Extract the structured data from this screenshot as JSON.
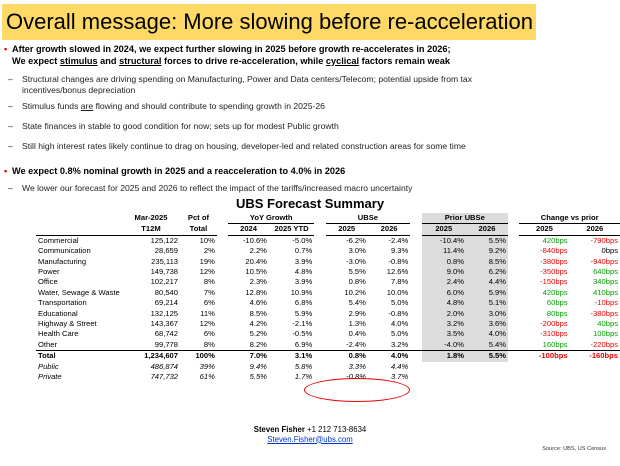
{
  "title": "Overall message: More slowing before re-acceleration",
  "bullet1": {
    "line1": "After growth slowed in 2024, we expect further slowing in 2025 before growth re-accelerates in 2026;",
    "line2a": "We expect ",
    "line2b": "stimulus",
    "line2c": " and ",
    "line2d": "structural",
    "line2e": " forces to drive re-acceleration, while ",
    "line2f": "cyclical",
    "line2g": " factors remain weak"
  },
  "subs1": [
    "Structural changes are driving spending on Manufacturing, Power and Data centers/Telecom; potential upside from tax",
    "incentives/bonus depreciation",
    "Stimulus funds ",
    "are",
    " flowing and should contribute to spending growth in 2025-26",
    "State finances in stable to good condition for now; sets up for modest Public growth",
    "Still high interest rates likely continue to drag on housing, developer-led and related construction areas for some time"
  ],
  "bullet2": "We expect 0.8% nominal growth in 2025 and a reacceleration to 4.0% in 2026",
  "sub2": "We lower our forecast for 2025 and 2026 to reflect the impact of the tariffs/increased macro uncertainty",
  "table_title": "UBS Forecast Summary",
  "headers": {
    "mar": "Mar-2025",
    "t12m": "T12M",
    "pct": "Pct of",
    "total": "Total",
    "yoy": "YoY Growth",
    "y2024": "2024",
    "ytd": "2025 YTD",
    "ubse": "UBSe",
    "u2025": "2025",
    "u2026": "2026",
    "prior": "Prior UBSe",
    "p2025": "2025",
    "p2026": "2026",
    "chg": "Change vs prior",
    "c2025": "2025",
    "c2026": "2026"
  },
  "rows": [
    {
      "name": "Commercial",
      "t12m": "125,122",
      "pct": "10%",
      "y2024": "-10.6%",
      "ytd": "-5.0%",
      "u25": "-6.2%",
      "u26": "-2.4%",
      "p25": "-10.4%",
      "p26": "5.5%",
      "c25": "420bps",
      "c26": "-790bps",
      "c25c": "g",
      "c26c": "r"
    },
    {
      "name": "Communication",
      "t12m": "28,659",
      "pct": "2%",
      "y2024": "2.2%",
      "ytd": "0.7%",
      "u25": "3.0%",
      "u26": "9.3%",
      "p25": "11.4%",
      "p26": "9.2%",
      "c25": "-840bps",
      "c26": "0bps",
      "c25c": "r",
      "c26c": ""
    },
    {
      "name": "Manufacturing",
      "t12m": "235,113",
      "pct": "19%",
      "y2024": "20.4%",
      "ytd": "3.9%",
      "u25": "-3.0%",
      "u26": "-0.8%",
      "p25": "0.8%",
      "p26": "8.5%",
      "c25": "-380bps",
      "c26": "-940bps",
      "c25c": "r",
      "c26c": "r"
    },
    {
      "name": "Power",
      "t12m": "149,738",
      "pct": "12%",
      "y2024": "10.5%",
      "ytd": "4.8%",
      "u25": "5.5%",
      "u26": "12.6%",
      "p25": "9.0%",
      "p26": "6.2%",
      "c25": "-350bps",
      "c26": "640bps",
      "c25c": "r",
      "c26c": "g"
    },
    {
      "name": "Office",
      "t12m": "102,217",
      "pct": "8%",
      "y2024": "2.3%",
      "ytd": "3.9%",
      "u25": "0.8%",
      "u26": "7.8%",
      "p25": "2.4%",
      "p26": "4.4%",
      "c25": "-150bps",
      "c26": "340bps",
      "c25c": "r",
      "c26c": "g"
    },
    {
      "name": "Water, Sewage & Waste",
      "t12m": "80,540",
      "pct": "7%",
      "y2024": "12.8%",
      "ytd": "10.9%",
      "u25": "10.2%",
      "u26": "10.0%",
      "p25": "6.0%",
      "p26": "5.9%",
      "c25": "420bps",
      "c26": "410bps",
      "c25c": "g",
      "c26c": "g"
    },
    {
      "name": "Transportation",
      "t12m": "69,214",
      "pct": "6%",
      "y2024": "4.6%",
      "ytd": "6.8%",
      "u25": "5.4%",
      "u26": "5.0%",
      "p25": "4.8%",
      "p26": "5.1%",
      "c25": "60bps",
      "c26": "-10bps",
      "c25c": "g",
      "c26c": "r"
    },
    {
      "name": "Educational",
      "t12m": "132,125",
      "pct": "11%",
      "y2024": "8.5%",
      "ytd": "5.9%",
      "u25": "2.9%",
      "u26": "-0.8%",
      "p25": "2.0%",
      "p26": "3.0%",
      "c25": "80bps",
      "c26": "-380bps",
      "c25c": "g",
      "c26c": "r"
    },
    {
      "name": "Highway & Street",
      "t12m": "143,367",
      "pct": "12%",
      "y2024": "4.2%",
      "ytd": "-2.1%",
      "u25": "1.3%",
      "u26": "4.0%",
      "p25": "3.2%",
      "p26": "3.6%",
      "c25": "-200bps",
      "c26": "40bps",
      "c25c": "r",
      "c26c": "g"
    },
    {
      "name": "Health Care",
      "t12m": "68,742",
      "pct": "6%",
      "y2024": "5.2%",
      "ytd": "-0.5%",
      "u25": "0.4%",
      "u26": "5.0%",
      "p25": "3.5%",
      "p26": "4.0%",
      "c25": "-310bps",
      "c26": "100bps",
      "c25c": "r",
      "c26c": "g"
    },
    {
      "name": "Other",
      "t12m": "99,778",
      "pct": "8%",
      "y2024": "8.2%",
      "ytd": "6.9%",
      "u25": "-2.4%",
      "u26": "3.2%",
      "p25": "-4.0%",
      "p26": "5.4%",
      "c25": "160bps",
      "c26": "-220bps",
      "c25c": "g",
      "c26c": "r"
    }
  ],
  "total": {
    "name": "Total",
    "t12m": "1,234,607",
    "pct": "100%",
    "y2024": "7.0%",
    "ytd": "3.1%",
    "u25": "0.8%",
    "u26": "4.0%",
    "p25": "1.8%",
    "p26": "5.5%",
    "c25": "-100bps",
    "c26": "-160bps"
  },
  "public": {
    "name": "Public",
    "t12m": "486,874",
    "pct": "39%",
    "y2024": "9.4%",
    "ytd": "5.8%",
    "u25": "3.3%",
    "u26": "4.4%"
  },
  "private": {
    "name": "Private",
    "t12m": "747,732",
    "pct": "61%",
    "y2024": "5.5%",
    "ytd": "1.7%",
    "u25": "-0.8%",
    "u26": "3.7%"
  },
  "footer": {
    "name": "Steven Fisher",
    "phone": " +1 212 713-8634",
    "email": "Steven.Fisher@ubs.com"
  },
  "source": "Source: UBS, US Census",
  "colors": {
    "highlight": "#ffd966",
    "positive": "#00a000",
    "negative": "#e60000",
    "shade": "#dcdcdc"
  }
}
